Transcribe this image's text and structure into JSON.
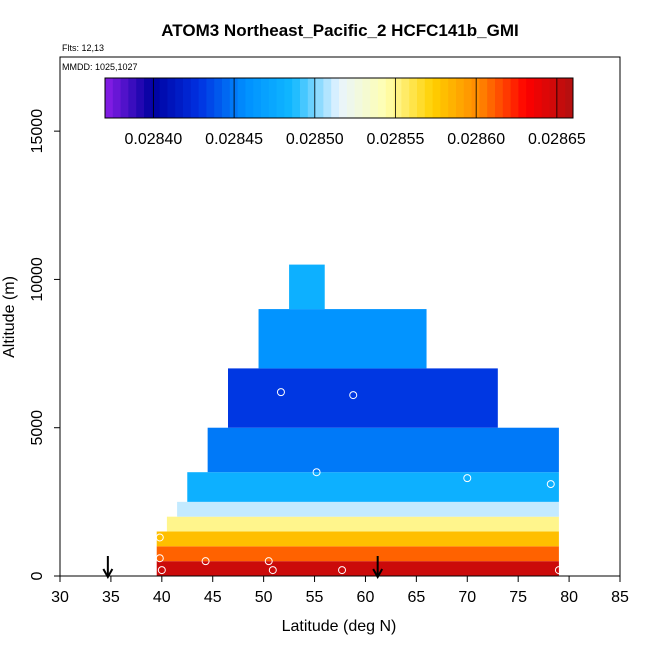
{
  "chart_data": {
    "type": "heatmap",
    "title": "ATOM3 Northeast_Pacific_2 HCFC141b_GMI",
    "flights_text": "Flts: 12,13",
    "mmdd_text": "MMDD: 1025,1027",
    "xlabel": "Latitude (deg N)",
    "ylabel": "Altitude (m)",
    "xlim": [
      30,
      85
    ],
    "ylim": [
      0,
      17500
    ],
    "x_ticks": [
      30,
      35,
      40,
      45,
      50,
      55,
      60,
      65,
      70,
      75,
      80,
      85
    ],
    "y_ticks": [
      0,
      5000,
      10000,
      15000
    ],
    "colorbar": {
      "range": [
        0.02837,
        0.02866
      ],
      "ticks": [
        "0.02840",
        "0.02845",
        "0.02850",
        "0.02855",
        "0.02860",
        "0.02865"
      ],
      "tick_values": [
        0.0284,
        0.02845,
        0.0285,
        0.02855,
        0.0286,
        0.02865
      ],
      "colors": [
        "#8b1ee8",
        "#0000a0",
        "#0030e0",
        "#0090ff",
        "#10b8ff",
        "#e8f4ff",
        "#ffffb0",
        "#ffd000",
        "#ff8800",
        "#ff0000",
        "#b01010"
      ]
    },
    "layers": [
      {
        "alt": [
          0,
          500
        ],
        "lat": [
          39.5,
          79
        ],
        "value": 0.02865
      },
      {
        "alt": [
          500,
          1000
        ],
        "lat": [
          39.5,
          79
        ],
        "value": 0.02861
      },
      {
        "alt": [
          1000,
          1500
        ],
        "lat": [
          39.5,
          79
        ],
        "value": 0.02858
      },
      {
        "alt": [
          1500,
          2000
        ],
        "lat": [
          40.5,
          79
        ],
        "value": 0.02855
      },
      {
        "alt": [
          2000,
          2500
        ],
        "lat": [
          41.5,
          79
        ],
        "value": 0.02851
      },
      {
        "alt": [
          2500,
          3500
        ],
        "lat": [
          42.5,
          79
        ],
        "value": 0.02848
      },
      {
        "alt": [
          3500,
          5000
        ],
        "lat": [
          44.5,
          79
        ],
        "value": 0.02845
      },
      {
        "alt": [
          5000,
          7000
        ],
        "lat": [
          46.5,
          73
        ],
        "value": 0.02843
      },
      {
        "alt": [
          7000,
          9000
        ],
        "lat": [
          49.5,
          66
        ],
        "value": 0.02846
      },
      {
        "alt": [
          9000,
          10500
        ],
        "lat": [
          52.5,
          56
        ],
        "value": 0.02848
      }
    ],
    "observations": [
      {
        "lat": 39.8,
        "alt": 1300
      },
      {
        "lat": 39.8,
        "alt": 600
      },
      {
        "lat": 40,
        "alt": 200
      },
      {
        "lat": 44.3,
        "alt": 500
      },
      {
        "lat": 50.5,
        "alt": 500
      },
      {
        "lat": 50.9,
        "alt": 200
      },
      {
        "lat": 51.7,
        "alt": 6200
      },
      {
        "lat": 55.2,
        "alt": 3500
      },
      {
        "lat": 57.7,
        "alt": 200
      },
      {
        "lat": 58.8,
        "alt": 6100
      },
      {
        "lat": 70,
        "alt": 3300
      },
      {
        "lat": 78.2,
        "alt": 3100
      },
      {
        "lat": 79,
        "alt": 200
      }
    ],
    "arrows": [
      34.7,
      61.2
    ]
  }
}
